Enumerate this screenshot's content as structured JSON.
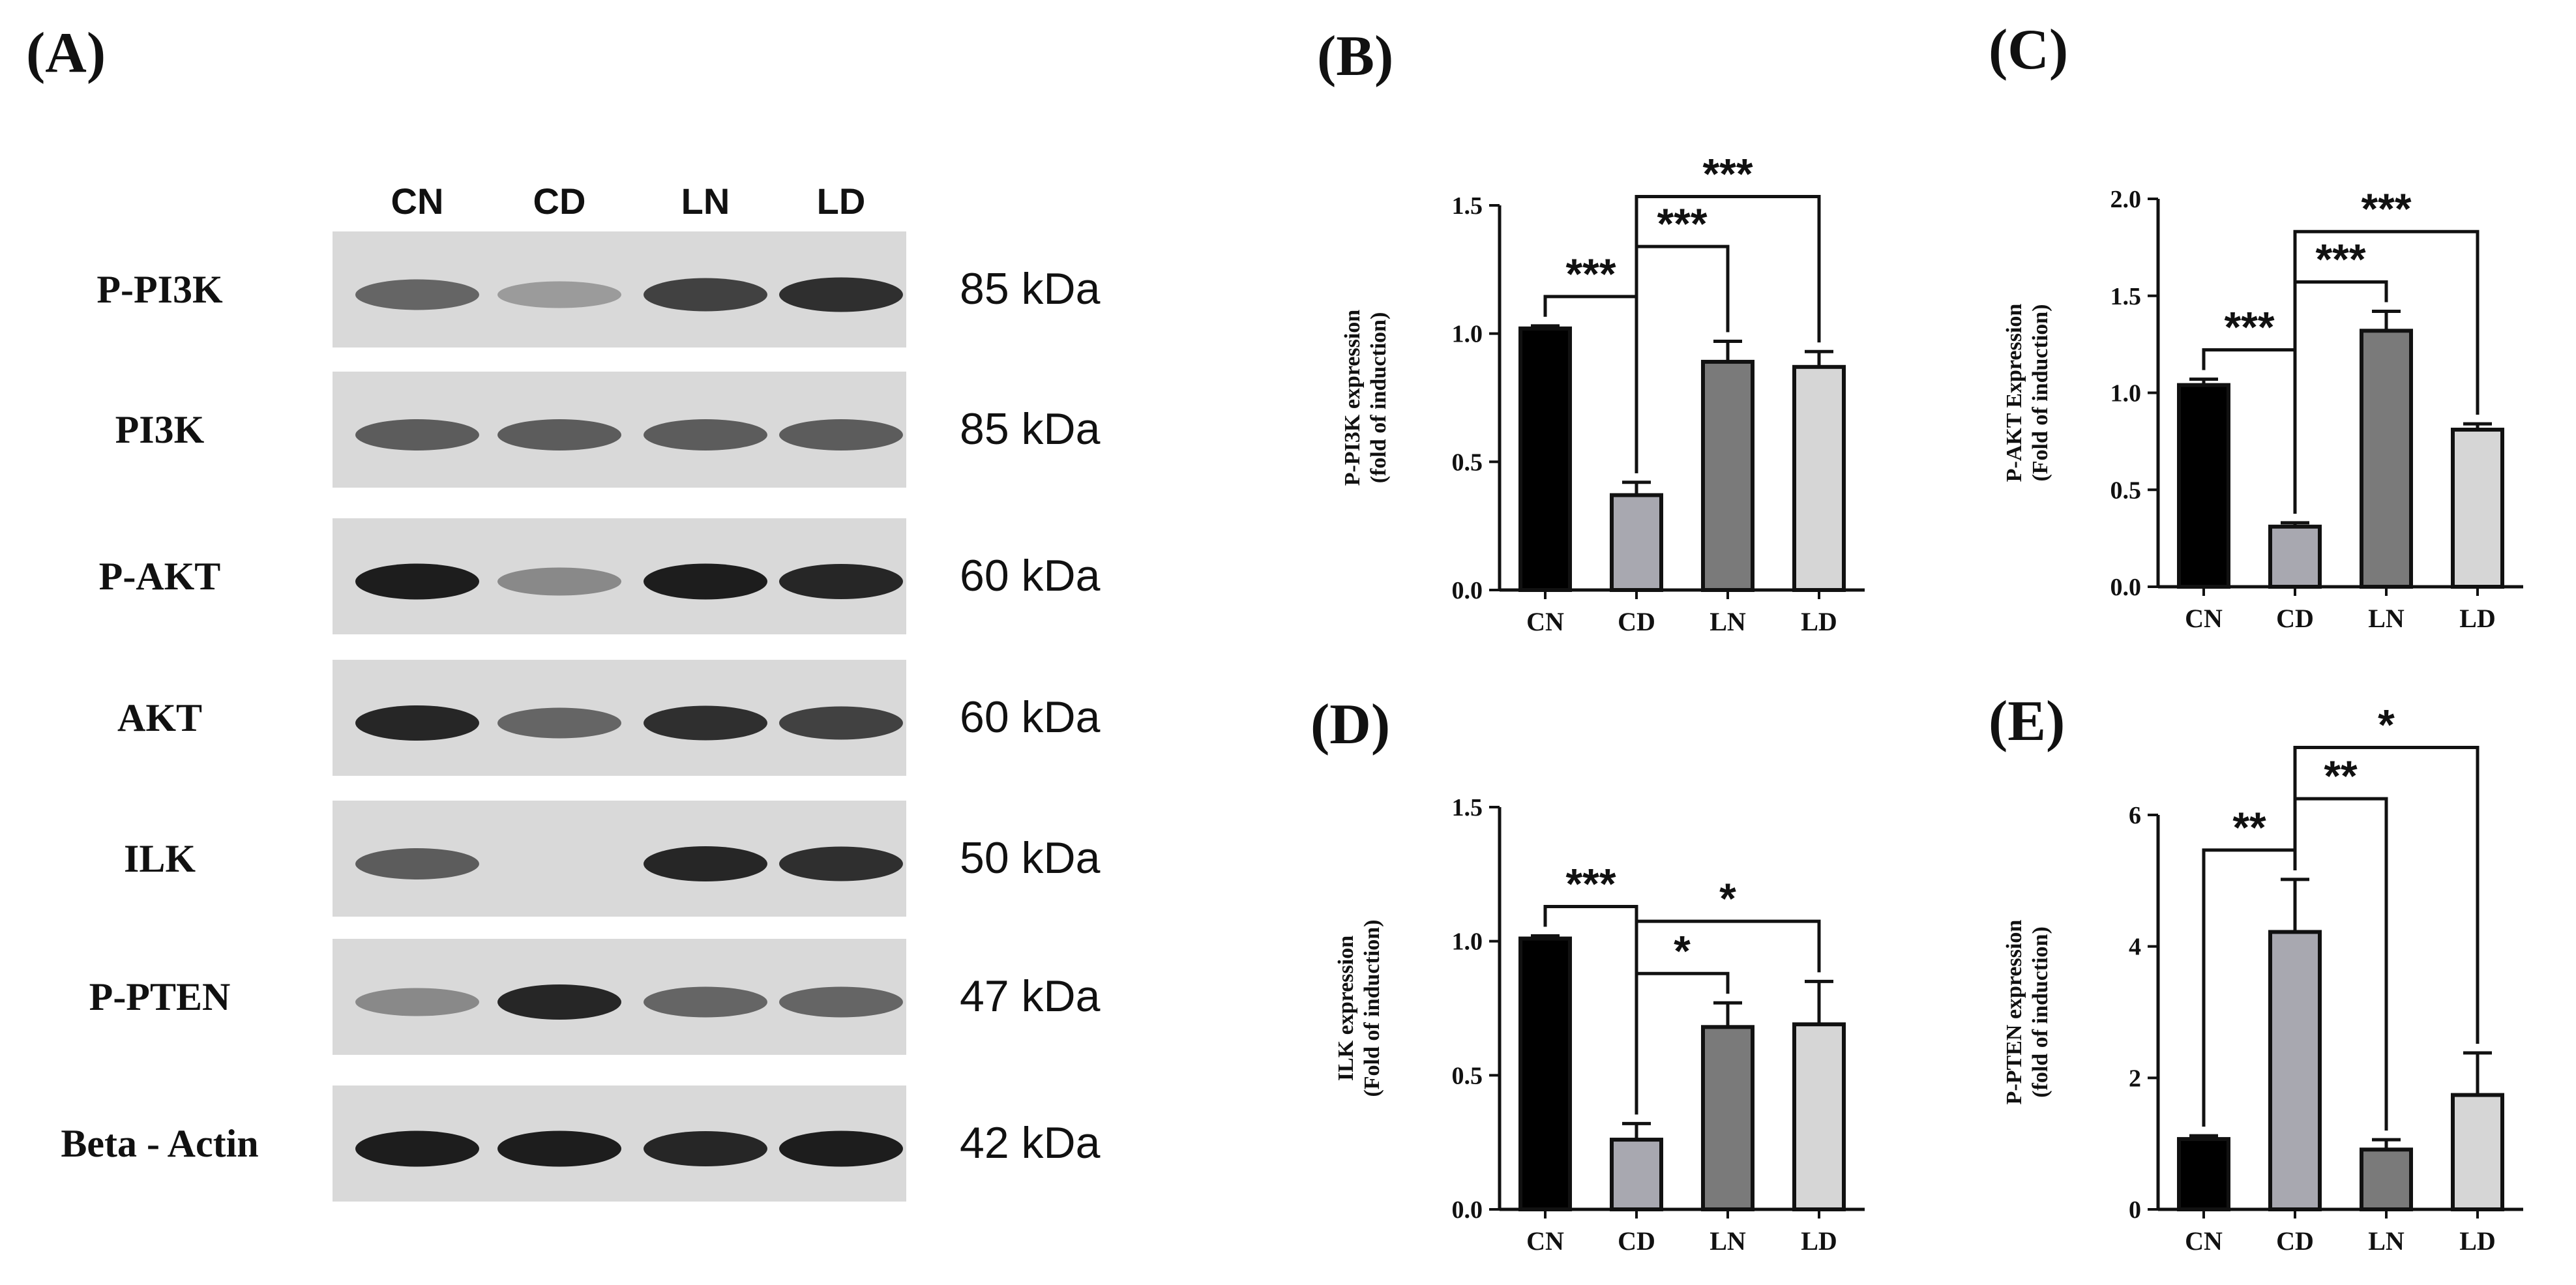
{
  "panel_labels": [
    "(A)",
    "(B)",
    "(C)",
    "(D)",
    "(E)"
  ],
  "blot": {
    "lanes": [
      "CN",
      "CD",
      "LN",
      "LD"
    ],
    "rows": [
      {
        "protein": "P-PI3K",
        "size": "85 kDa",
        "intensity": [
          0.55,
          0.25,
          0.75,
          0.85
        ]
      },
      {
        "protein": "PI3K",
        "size": "85 kDa",
        "intensity": [
          0.6,
          0.6,
          0.6,
          0.6
        ]
      },
      {
        "protein": "P-AKT",
        "size": "60 kDa",
        "intensity": [
          0.95,
          0.35,
          0.95,
          0.9
        ]
      },
      {
        "protein": "AKT",
        "size": "60 kDa",
        "intensity": [
          0.9,
          0.55,
          0.85,
          0.75
        ]
      },
      {
        "protein": "ILK",
        "size": "50 kDa",
        "intensity": [
          0.6,
          0.0,
          0.9,
          0.85
        ]
      },
      {
        "protein": "P-PTEN",
        "size": "47 kDa",
        "intensity": [
          0.35,
          0.9,
          0.55,
          0.55
        ]
      },
      {
        "protein": "Beta - Actin",
        "size": "42 kDa",
        "intensity": [
          0.95,
          0.95,
          0.9,
          0.95
        ]
      }
    ]
  },
  "chart_data": [
    {
      "panel": "(B)",
      "type": "bar",
      "categories": [
        "CN",
        "CD",
        "LN",
        "LD"
      ],
      "values": [
        1.02,
        0.37,
        0.89,
        0.87
      ],
      "errors": [
        0.01,
        0.05,
        0.08,
        0.06
      ],
      "ylabel": [
        "P-PI3K expression",
        "(fold of induction)"
      ],
      "ylim": [
        0,
        1.5
      ],
      "yticks": [
        0.0,
        0.5,
        1.0,
        1.5
      ],
      "ytick_labels": [
        "0.0",
        "0.5",
        "1.0",
        "1.5"
      ],
      "bar_colors": [
        "#000000",
        "#a8a8b0",
        "#7a7a7a",
        "#d6d6d6"
      ],
      "significance": [
        {
          "from": 0,
          "to": 1,
          "label": "***"
        },
        {
          "from": 1,
          "to": 2,
          "label": "***"
        },
        {
          "from": 1,
          "to": 3,
          "label": "***"
        }
      ]
    },
    {
      "panel": "(C)",
      "type": "bar",
      "categories": [
        "CN",
        "CD",
        "LN",
        "LD"
      ],
      "values": [
        1.04,
        0.31,
        1.32,
        0.81
      ],
      "errors": [
        0.03,
        0.02,
        0.1,
        0.03
      ],
      "ylabel": [
        "P-AKT  Expression",
        "(Fold of induction)"
      ],
      "ylim": [
        0,
        2.0
      ],
      "yticks": [
        0.0,
        0.5,
        1.0,
        1.5,
        2.0
      ],
      "ytick_labels": [
        "0.0",
        "0.5",
        "1.0",
        "1.5",
        "2.0"
      ],
      "bar_colors": [
        "#000000",
        "#a8a8b0",
        "#7a7a7a",
        "#d6d6d6"
      ],
      "significance": [
        {
          "from": 0,
          "to": 1,
          "label": "***"
        },
        {
          "from": 1,
          "to": 2,
          "label": "***"
        },
        {
          "from": 1,
          "to": 3,
          "label": "***"
        }
      ]
    },
    {
      "panel": "(D)",
      "type": "bar",
      "categories": [
        "CN",
        "CD",
        "LN",
        "LD"
      ],
      "values": [
        1.01,
        0.26,
        0.68,
        0.69
      ],
      "errors": [
        0.01,
        0.06,
        0.09,
        0.16
      ],
      "ylabel": [
        "ILK expression",
        "(Fold of induction)"
      ],
      "ylim": [
        0,
        1.5
      ],
      "yticks": [
        0.0,
        0.5,
        1.0,
        1.5
      ],
      "ytick_labels": [
        "0.0",
        "0.5",
        "1.0",
        "1.5"
      ],
      "bar_colors": [
        "#000000",
        "#a8a8b0",
        "#7a7a7a",
        "#d6d6d6"
      ],
      "significance": [
        {
          "from": 0,
          "to": 1,
          "label": "***"
        },
        {
          "from": 1,
          "to": 2,
          "label": "*"
        },
        {
          "from": 1,
          "to": 3,
          "label": "*"
        }
      ]
    },
    {
      "panel": "(E)",
      "type": "bar",
      "categories": [
        "CN",
        "CD",
        "LN",
        "LD"
      ],
      "values": [
        1.07,
        4.22,
        0.91,
        1.74
      ],
      "errors": [
        0.05,
        0.8,
        0.15,
        0.64
      ],
      "ylabel": [
        "P-PTEN expression",
        "(fold of induction)"
      ],
      "ylim": [
        0,
        6
      ],
      "yticks": [
        0,
        2,
        4,
        6
      ],
      "ytick_labels": [
        "0",
        "2",
        "4",
        "6"
      ],
      "bar_colors": [
        "#000000",
        "#a8a8b0",
        "#7a7a7a",
        "#d6d6d6"
      ],
      "significance": [
        {
          "from": 0,
          "to": 1,
          "label": "**"
        },
        {
          "from": 1,
          "to": 2,
          "label": "**"
        },
        {
          "from": 1,
          "to": 3,
          "label": "*"
        }
      ]
    }
  ]
}
